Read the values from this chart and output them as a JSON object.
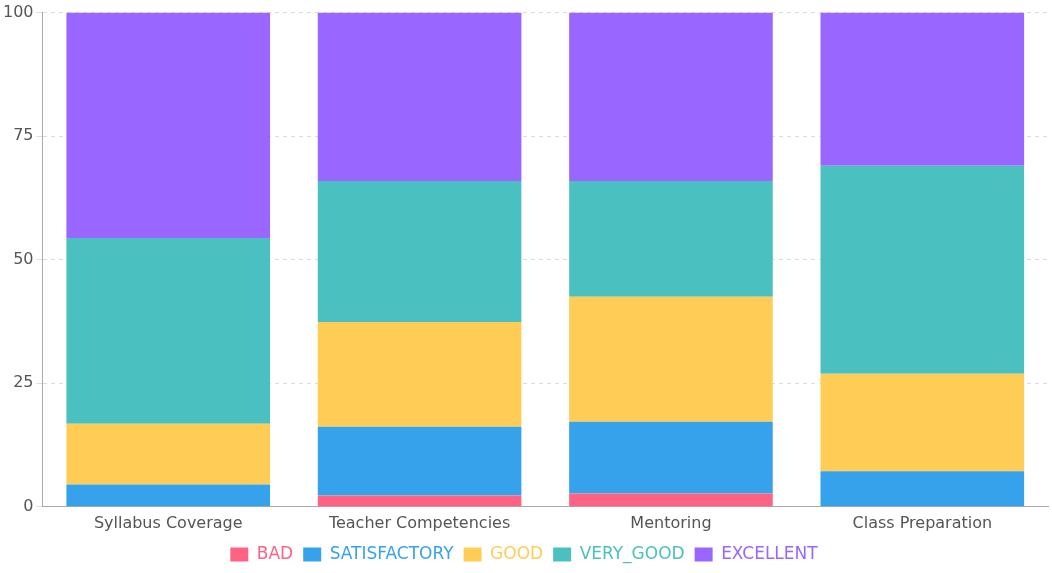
{
  "chart_data": {
    "type": "bar",
    "stacked": true,
    "categories": [
      "Syllabus Coverage",
      "Teacher Competencies",
      "Mentoring",
      "Class Preparation"
    ],
    "series": [
      {
        "name": "BAD",
        "color": "#ff6384",
        "values": [
          0,
          2.3,
          2.7,
          0
        ]
      },
      {
        "name": "SATISFACTORY",
        "color": "#36a2eb",
        "values": [
          4.5,
          13.9,
          14.5,
          7.2
        ]
      },
      {
        "name": "GOOD",
        "color": "#ffcd56",
        "values": [
          12.3,
          21.2,
          25.3,
          19.7
        ]
      },
      {
        "name": "VERY_GOOD",
        "color": "#4bc0c0",
        "values": [
          37.6,
          28.5,
          23.4,
          42.1
        ]
      },
      {
        "name": "EXCELLENT",
        "color": "#9966ff",
        "values": [
          45.6,
          34.1,
          34.1,
          31.0
        ]
      }
    ],
    "ylim": [
      0,
      100
    ],
    "yticks": [
      0,
      25,
      50,
      75,
      100
    ],
    "grid": "y",
    "legend": "bottom"
  }
}
